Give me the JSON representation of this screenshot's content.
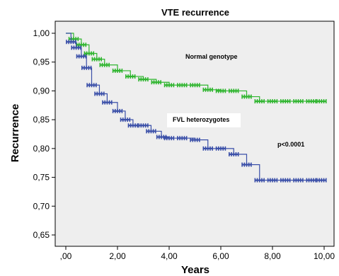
{
  "chart_data": {
    "type": "line",
    "title": "VTE recurrence",
    "xlabel": "Years",
    "ylabel": "Recurrence",
    "xlim": [
      0,
      10
    ],
    "ylim": [
      0.63,
      1.0
    ],
    "x_ticks": [
      ",00",
      "2,00",
      "4,00",
      "6,00",
      "8,00",
      "10,00"
    ],
    "y_ticks": [
      "1,00",
      "0,95",
      "0,90",
      "0,85",
      "0,80",
      "0,75",
      "0,70",
      "0,65"
    ],
    "grid": false,
    "annotations": [
      "Normal genotype",
      "FVL heterozygotes",
      "p<0.0001"
    ],
    "series": [
      {
        "name": "Normal genotype",
        "color": "#2fb52f",
        "x": [
          0,
          0.3,
          0.6,
          0.9,
          1.2,
          1.5,
          2.0,
          2.5,
          3.0,
          3.5,
          4.0,
          4.5,
          5.0,
          5.5,
          6.0,
          6.5,
          7.0,
          7.5,
          8.0,
          8.5,
          9.0,
          9.5,
          9.9
        ],
        "y": [
          1.0,
          0.99,
          0.98,
          0.965,
          0.955,
          0.945,
          0.935,
          0.925,
          0.92,
          0.915,
          0.91,
          0.91,
          0.91,
          0.902,
          0.9,
          0.9,
          0.89,
          0.882,
          0.882,
          0.882,
          0.882,
          0.882,
          0.882
        ]
      },
      {
        "name": "FVL heterozygotes",
        "color": "#3a4fa8",
        "x": [
          0,
          0.2,
          0.4,
          0.6,
          0.8,
          1.0,
          1.3,
          1.6,
          2.0,
          2.3,
          2.6,
          3.0,
          3.3,
          3.7,
          4.0,
          4.5,
          5.0,
          5.5,
          6.0,
          6.5,
          7.0,
          7.5,
          8.0,
          8.5,
          9.0,
          9.5,
          9.9
        ],
        "y": [
          1.0,
          0.985,
          0.975,
          0.96,
          0.94,
          0.91,
          0.895,
          0.88,
          0.865,
          0.85,
          0.84,
          0.84,
          0.83,
          0.82,
          0.818,
          0.818,
          0.815,
          0.8,
          0.8,
          0.79,
          0.772,
          0.745,
          0.745,
          0.745,
          0.745,
          0.745,
          0.745
        ]
      }
    ]
  }
}
